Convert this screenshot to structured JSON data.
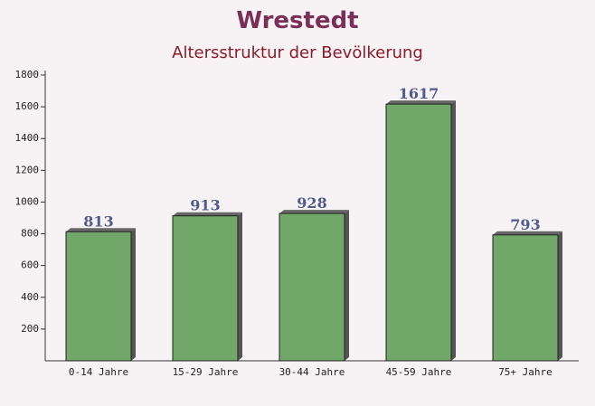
{
  "chart_data": {
    "type": "bar",
    "title": "Wrestedt",
    "subtitle": "Altersstruktur der Bevölkerung",
    "categories": [
      "0-14 Jahre",
      "15-29 Jahre",
      "30-44 Jahre",
      "45-59 Jahre",
      "75+ Jahre"
    ],
    "values": [
      813,
      913,
      928,
      1617,
      793
    ],
    "color": "#6aa262",
    "ylim": [
      0,
      1800
    ],
    "yticks": [
      200,
      400,
      600,
      800,
      1000,
      1200,
      1400,
      1600,
      1800
    ]
  }
}
